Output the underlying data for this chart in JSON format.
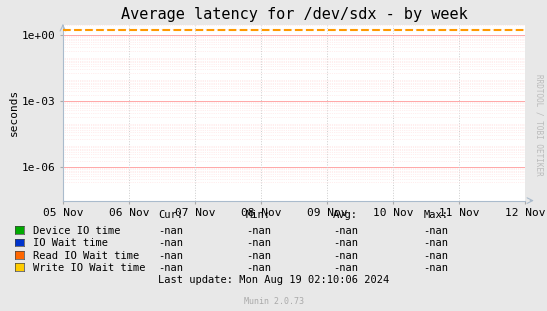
{
  "title": "Average latency for /dev/sdx - by week",
  "ylabel": "seconds",
  "background_color": "#e8e8e8",
  "plot_bg_color": "#ffffff",
  "grid_color_major_h": "#ff9999",
  "grid_color_minor_v": "#cccccc",
  "x_ticks": [
    "05 Nov",
    "06 Nov",
    "07 Nov",
    "08 Nov",
    "09 Nov",
    "10 Nov",
    "11 Nov",
    "12 Nov"
  ],
  "y_lim": [
    3e-08,
    3.0
  ],
  "y_ticks": [
    1e-06,
    0.001,
    1.0
  ],
  "y_tick_labels": [
    "1e-06",
    "1e-03",
    "1e+00"
  ],
  "dashed_line_y": 1.8,
  "dashed_line_color": "#ff9900",
  "legend_entries": [
    {
      "label": "Device IO time",
      "color": "#00aa00"
    },
    {
      "label": "IO Wait time",
      "color": "#0033cc"
    },
    {
      "label": "Read IO Wait time",
      "color": "#ff6600"
    },
    {
      "label": "Write IO Wait time",
      "color": "#ffcc00"
    }
  ],
  "legend_col_headers": [
    "Cur:",
    "Min:",
    "Avg:",
    "Max:"
  ],
  "legend_values": [
    "-nan",
    "-nan",
    "-nan",
    "-nan"
  ],
  "last_update": "Last update: Mon Aug 19 02:10:06 2024",
  "watermark": "Munin 2.0.73",
  "right_label": "RRDTOOL / TOBI OETIKER",
  "title_fontsize": 11,
  "axis_fontsize": 8,
  "tick_fontsize": 8
}
